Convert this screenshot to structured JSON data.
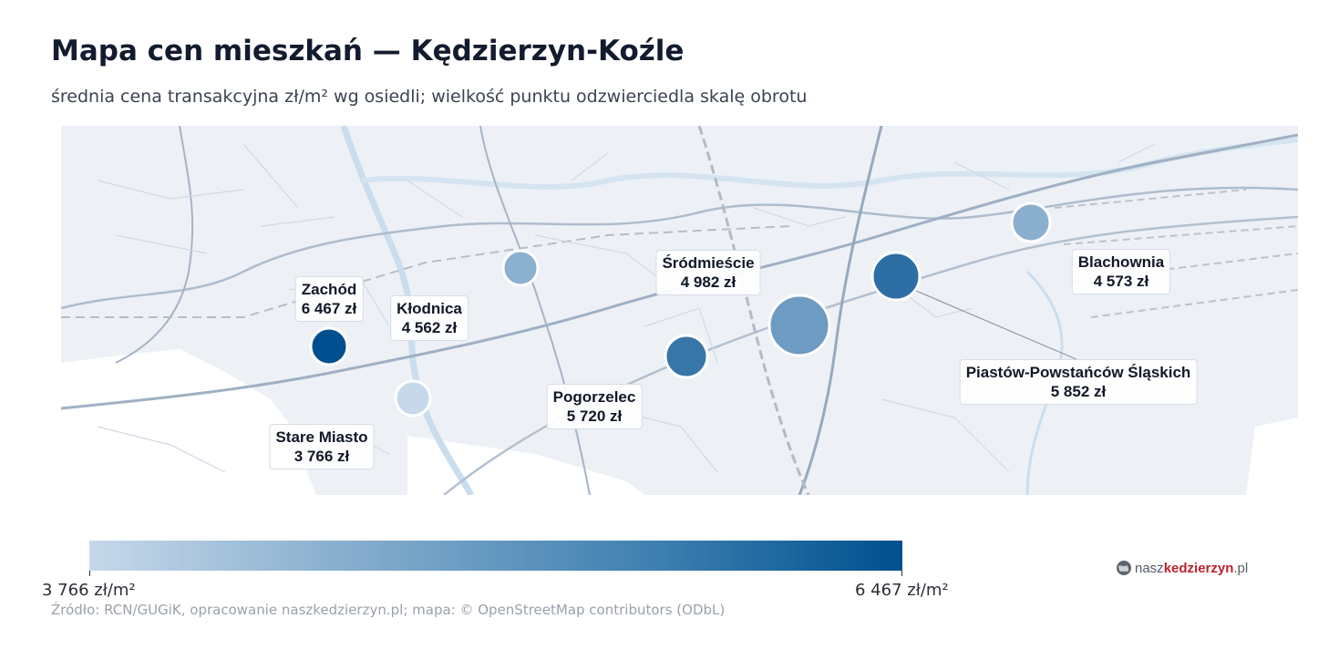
{
  "title": "Mapa cen mieszkań — Kędzierzyn-Koźle",
  "subtitle": "średnia cena transakcyjna zł/m² wg osiedli; wielkość punktu odzwierciedla skalę obrotu",
  "districts": [
    {
      "name": "Zachód",
      "price": "6 467 zł",
      "value": 6467
    },
    {
      "name": "Kłodnica",
      "price": "4 562 zł",
      "value": 4562
    },
    {
      "name": "Stare Miasto",
      "price": "3 766 zł",
      "value": 3766
    },
    {
      "name": "Pogorzelec",
      "price": "5 720 zł",
      "value": 5720
    },
    {
      "name": "Śródmieście",
      "price": "4 982 zł",
      "value": 4982
    },
    {
      "name": "Piastów-Powstańców Śląskich",
      "price": "5 852 zł",
      "value": 5852
    },
    {
      "name": "Blachownia",
      "price": "4 573 zł",
      "value": 4573
    }
  ],
  "legend": {
    "min_label": "3 766 zł/m²",
    "max_label": "6 467 zł/m²",
    "min_value": 3766,
    "max_value": 6467,
    "color_low": "#c6d8ea",
    "color_high": "#00508f"
  },
  "source": "Źródło: RCN/GUGiK, opracowanie naszkedzierzyn.pl; mapa: © OpenStreetMap contributors (ODbL)",
  "brand": {
    "part1": "nasz",
    "part2": "kedzierzyn",
    "part3": ".pl",
    "icon": "globe-logo-icon",
    "accent": "#c0222c"
  }
}
